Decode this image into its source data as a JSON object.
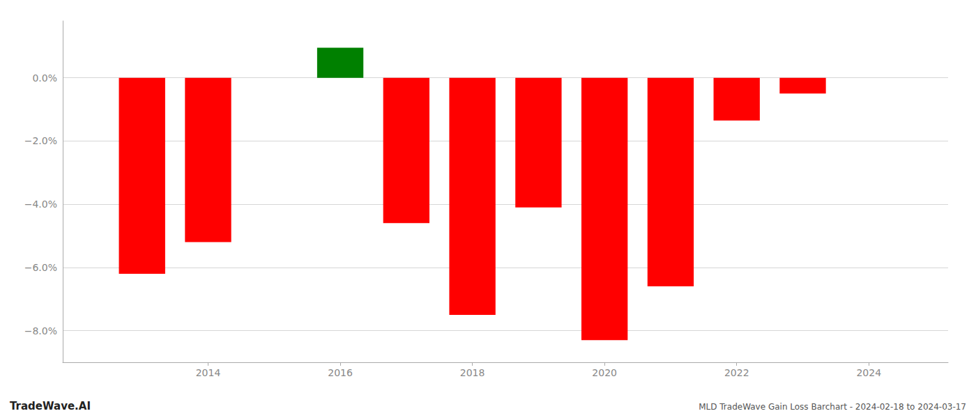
{
  "chart_data": {
    "type": "bar",
    "x": [
      2013,
      2014,
      2016,
      2017,
      2018,
      2019,
      2020,
      2021,
      2022,
      2023
    ],
    "values": [
      -6.2,
      -5.2,
      0.95,
      -4.6,
      -7.5,
      -4.1,
      -8.3,
      -6.6,
      -1.35,
      -0.5
    ],
    "colors": [
      "#ff0000",
      "#ff0000",
      "#008000",
      "#ff0000",
      "#ff0000",
      "#ff0000",
      "#ff0000",
      "#ff0000",
      "#ff0000",
      "#ff0000"
    ],
    "xlim": [
      2011.8,
      2025.2
    ],
    "xticks": [
      2014,
      2016,
      2018,
      2020,
      2022,
      2024
    ],
    "ylim": [
      -9.0,
      1.8
    ],
    "yticks": [
      {
        "value": 0.0,
        "label": "0.0%"
      },
      {
        "value": -2.0,
        "label": "−2.0%"
      },
      {
        "value": -4.0,
        "label": "−4.0%"
      },
      {
        "value": -6.0,
        "label": "−6.0%"
      },
      {
        "value": -8.0,
        "label": "−8.0%"
      }
    ],
    "grid": true,
    "annotations": [
      "TradeWave.AI",
      "MLD TradeWave Gain Loss Barchart - 2024-02-18 to 2024-03-17"
    ]
  }
}
